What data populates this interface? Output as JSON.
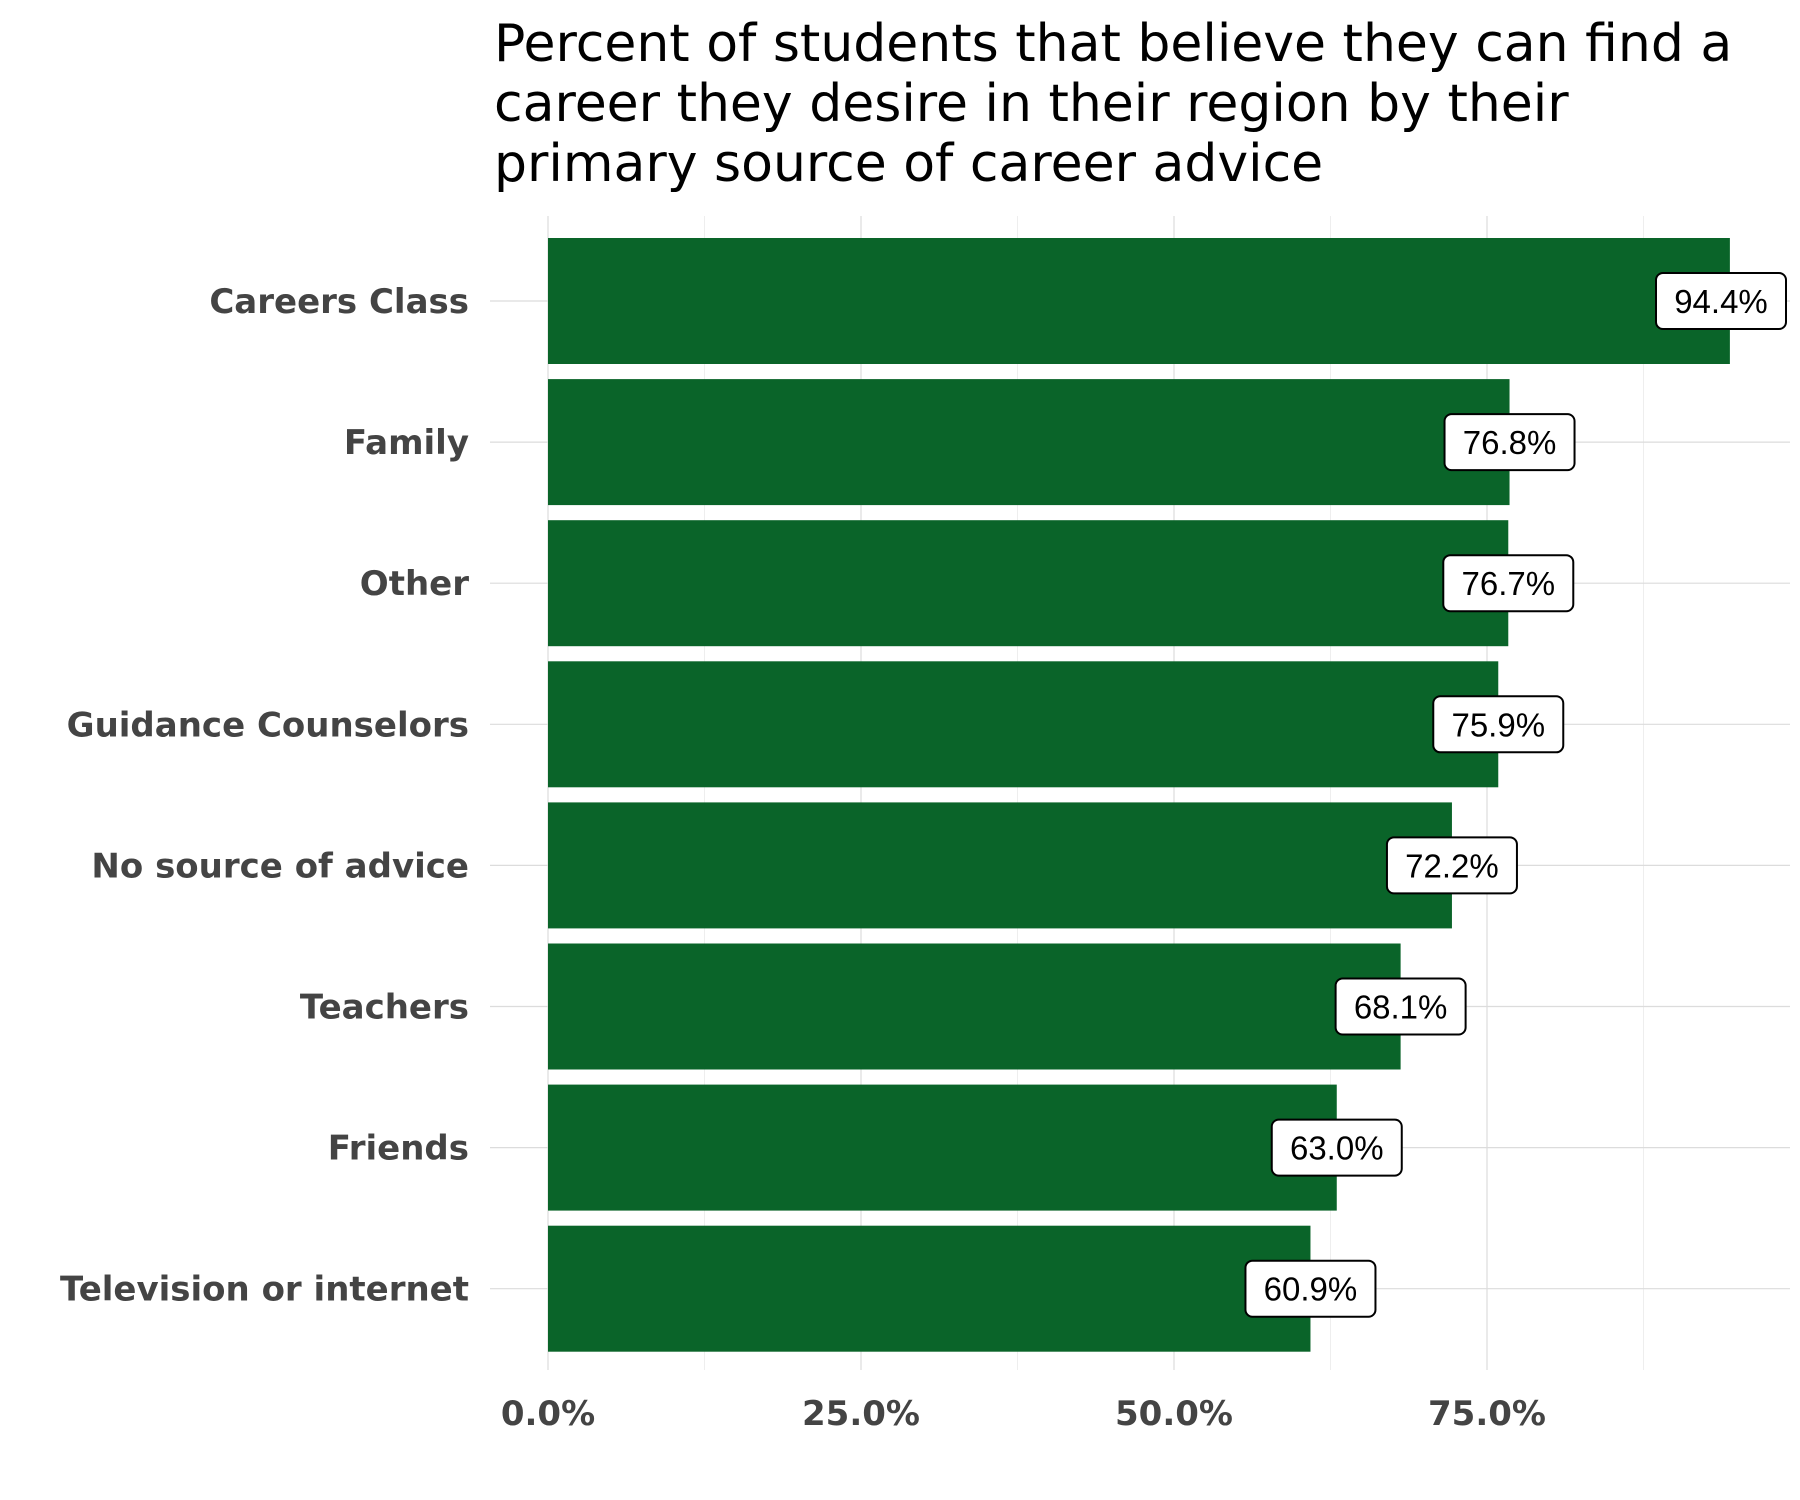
{
  "chart_data": {
    "type": "bar",
    "orientation": "horizontal",
    "title": "Percent of students that believe they can find a career they desire in their region by their primary source of career advice",
    "xlabel": "",
    "ylabel": "",
    "categories": [
      "Careers Class",
      "Family",
      "Other",
      "Guidance Counselors",
      "No source of advice",
      "Teachers",
      "Friends",
      "Television or internet"
    ],
    "values": [
      94.4,
      76.8,
      76.7,
      75.9,
      72.2,
      68.1,
      63.0,
      60.9
    ],
    "data_labels": [
      "94.4%",
      "76.8%",
      "76.7%",
      "75.9%",
      "72.2%",
      "68.1%",
      "63.0%",
      "60.9%"
    ],
    "xlim": [
      0,
      100
    ],
    "x_ticks": [
      0,
      25,
      50,
      75
    ],
    "x_tick_labels": [
      "0.0%",
      "25.0%",
      "50.0%",
      "75.0%"
    ],
    "grid": true,
    "legend": "none",
    "bar_color": "#0a6429"
  }
}
